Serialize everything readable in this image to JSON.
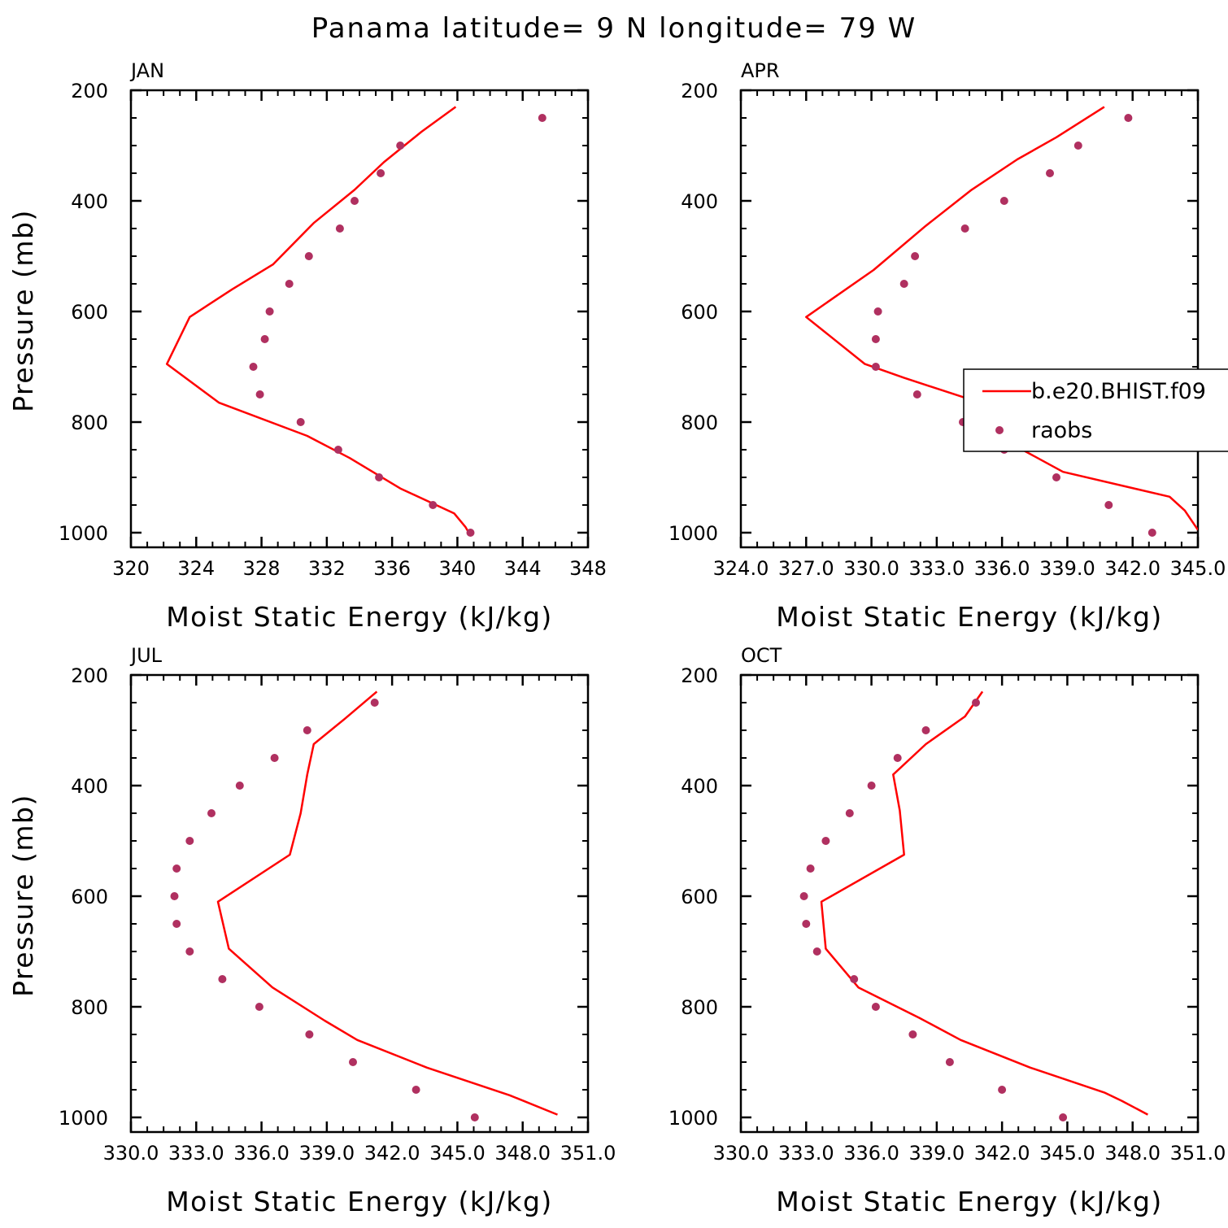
{
  "figure": {
    "title": "Panama  latitude= 9 N longitude= 79 W"
  },
  "colors": {
    "model_line": "#ff0000",
    "raobs_marker": "#b03060",
    "axes": "#000000"
  },
  "legend": {
    "entries": [
      {
        "label": "b.e20.BHIST.f09",
        "symbol": "line"
      },
      {
        "label": "raobs",
        "symbol": "dot"
      }
    ],
    "panel": 1,
    "placement": "right, overflowing the APR panel"
  },
  "chart_data": [
    {
      "type": "line",
      "panel_title": "JAN",
      "xlabel": "Moist Static Energy (kJ/kg)",
      "ylabel": "Pressure (mb)",
      "xlim": [
        320,
        348
      ],
      "ylim": [
        1000,
        200
      ],
      "y_inverted": true,
      "xticks": [
        320,
        324,
        328,
        332,
        336,
        340,
        344,
        348
      ],
      "xtick_labels": [
        "320",
        "324",
        "328",
        "332",
        "336",
        "340",
        "344",
        "348"
      ],
      "yticks": [
        200,
        400,
        600,
        800,
        1000
      ],
      "ytick_labels": [
        "200",
        "400",
        "600",
        "800",
        "1000"
      ],
      "series": [
        {
          "name": "b.e20.BHIST.f09",
          "style": "line",
          "x": [
            339.9,
            337.8,
            335.5,
            333.7,
            331.2,
            328.7,
            326.2,
            323.6,
            322.2,
            325.4,
            330.8,
            333.4,
            336.5,
            339.8,
            340.5,
            340.7
          ],
          "y": [
            230,
            275,
            330,
            380,
            440,
            515,
            560,
            610,
            695,
            765,
            825,
            865,
            920,
            965,
            990,
            1000
          ]
        },
        {
          "name": "raobs",
          "style": "markers",
          "x": [
            345.2,
            336.5,
            335.3,
            333.7,
            332.8,
            330.9,
            329.7,
            328.5,
            328.2,
            327.5,
            327.9,
            330.4,
            332.7,
            335.2,
            338.5,
            340.8
          ],
          "y": [
            250,
            300,
            350,
            400,
            450,
            500,
            550,
            600,
            650,
            700,
            750,
            800,
            850,
            900,
            950,
            1000
          ]
        }
      ]
    },
    {
      "type": "line",
      "panel_title": "APR",
      "xlabel": "Moist Static Energy (kJ/kg)",
      "ylabel": "",
      "xlim": [
        324.0,
        345.0
      ],
      "ylim": [
        1000,
        200
      ],
      "y_inverted": true,
      "xticks": [
        324,
        327,
        330,
        333,
        336,
        339,
        342,
        345
      ],
      "xtick_labels": [
        "324.0",
        "327.0",
        "330.0",
        "333.0",
        "336.0",
        "339.0",
        "342.0",
        "345.0"
      ],
      "yticks": [
        200,
        400,
        600,
        800,
        1000
      ],
      "ytick_labels": [
        "200",
        "400",
        "600",
        "800",
        "1000"
      ],
      "series": [
        {
          "name": "b.e20.BHIST.f09",
          "style": "line",
          "x": [
            340.7,
            338.5,
            336.7,
            334.6,
            332.5,
            330.1,
            327.0,
            329.7,
            331.5,
            335.0,
            336.2,
            336.7,
            338.8,
            343.7,
            344.4,
            345.0
          ],
          "y": [
            230,
            285,
            325,
            380,
            445,
            525,
            610,
            695,
            720,
            765,
            820,
            845,
            890,
            935,
            960,
            995
          ]
        },
        {
          "name": "raobs",
          "style": "markers",
          "x": [
            341.8,
            339.5,
            338.2,
            336.1,
            334.3,
            332.0,
            331.5,
            330.3,
            330.2,
            330.2,
            332.1,
            334.2,
            336.1,
            338.5,
            340.9,
            342.9
          ],
          "y": [
            250,
            300,
            350,
            400,
            450,
            500,
            550,
            600,
            650,
            700,
            750,
            800,
            850,
            900,
            950,
            1000
          ]
        }
      ]
    },
    {
      "type": "line",
      "panel_title": "JUL",
      "xlabel": "Moist Static Energy (kJ/kg)",
      "ylabel": "Pressure (mb)",
      "xlim": [
        330.0,
        351.0
      ],
      "ylim": [
        1000,
        200
      ],
      "y_inverted": true,
      "xticks": [
        330,
        333,
        336,
        339,
        342,
        345,
        348,
        351
      ],
      "xtick_labels": [
        "330.0",
        "333.0",
        "336.0",
        "339.0",
        "342.0",
        "345.0",
        "348.0",
        "351.0"
      ],
      "yticks": [
        200,
        400,
        600,
        800,
        1000
      ],
      "ytick_labels": [
        "200",
        "400",
        "600",
        "800",
        "1000"
      ],
      "series": [
        {
          "name": "b.e20.BHIST.f09",
          "style": "line",
          "x": [
            341.3,
            339.8,
            338.4,
            338.1,
            337.8,
            337.3,
            334.0,
            334.5,
            336.5,
            338.9,
            340.4,
            343.6,
            347.4,
            349.6
          ],
          "y": [
            230,
            280,
            325,
            380,
            450,
            525,
            610,
            695,
            765,
            825,
            860,
            910,
            960,
            995
          ]
        },
        {
          "name": "raobs",
          "style": "markers",
          "x": [
            341.2,
            338.1,
            336.6,
            335.0,
            333.7,
            332.7,
            332.1,
            332.0,
            332.1,
            332.7,
            334.2,
            335.9,
            338.2,
            340.2,
            343.1,
            345.8
          ],
          "y": [
            250,
            300,
            350,
            400,
            450,
            500,
            550,
            600,
            650,
            700,
            750,
            800,
            850,
            900,
            950,
            1000
          ]
        }
      ]
    },
    {
      "type": "line",
      "panel_title": "OCT",
      "xlabel": "Moist Static Energy (kJ/kg)",
      "ylabel": "",
      "xlim": [
        330.0,
        351.0
      ],
      "ylim": [
        1000,
        200
      ],
      "y_inverted": true,
      "xticks": [
        330,
        333,
        336,
        339,
        342,
        345,
        348,
        351
      ],
      "xtick_labels": [
        "330.0",
        "333.0",
        "336.0",
        "339.0",
        "342.0",
        "345.0",
        "348.0",
        "351.0"
      ],
      "yticks": [
        200,
        400,
        600,
        800,
        1000
      ],
      "ytick_labels": [
        "200",
        "400",
        "600",
        "800",
        "1000"
      ],
      "series": [
        {
          "name": "b.e20.BHIST.f09",
          "style": "line",
          "x": [
            341.1,
            340.3,
            338.5,
            337.0,
            337.3,
            337.5,
            333.7,
            333.9,
            335.4,
            338.2,
            340.1,
            343.3,
            346.7,
            347.5,
            348.7
          ],
          "y": [
            230,
            275,
            325,
            380,
            445,
            525,
            610,
            695,
            765,
            820,
            860,
            910,
            955,
            970,
            995
          ]
        },
        {
          "name": "raobs",
          "style": "markers",
          "x": [
            340.8,
            338.5,
            337.2,
            336.0,
            335.0,
            333.9,
            333.2,
            332.9,
            333.0,
            333.5,
            335.2,
            336.2,
            337.9,
            339.6,
            342.0,
            344.8
          ],
          "y": [
            250,
            300,
            350,
            400,
            450,
            500,
            550,
            600,
            650,
            700,
            750,
            800,
            850,
            900,
            950,
            1000
          ]
        }
      ]
    }
  ]
}
